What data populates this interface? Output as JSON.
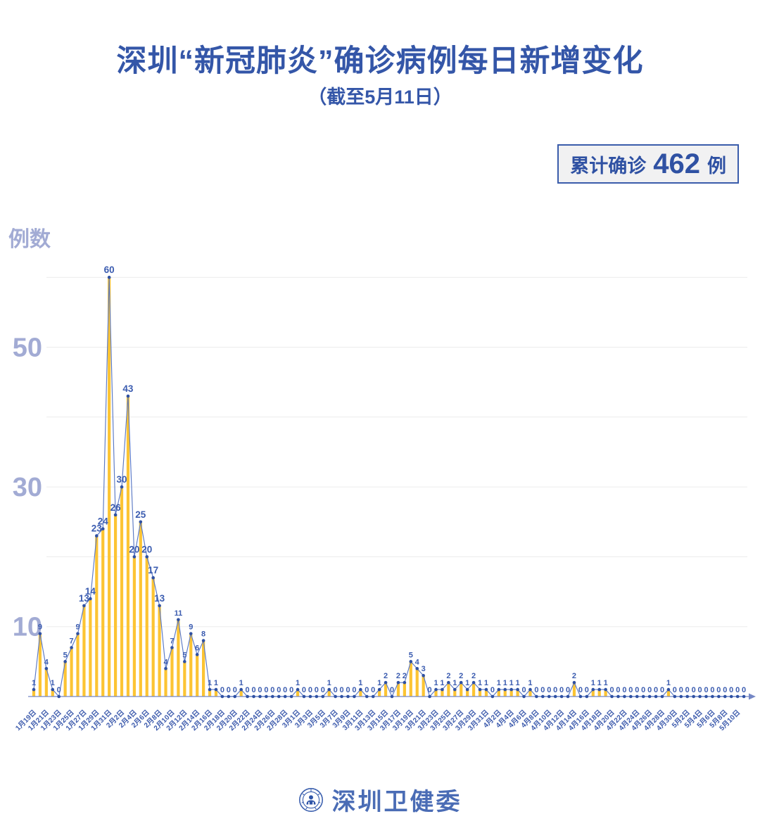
{
  "title": "深圳“新冠肺炎”确诊病例每日新增变化",
  "subtitle": "（截至5月11日）",
  "summary_badge": {
    "prefix": "累计确诊",
    "value": "462",
    "unit": "例"
  },
  "y_axis_title": "例数",
  "footer": {
    "logo": "shenzhen-health-commission-emblem",
    "name": "深圳卫健委"
  },
  "colors": {
    "title_blue": "#3456a8",
    "bar_yellow": "#fcc433",
    "line_blue": "#5b79c4",
    "dot_blue": "#2f51a3",
    "value_label_blue": "#3b5cb0",
    "date_label_blue": "#3e5cad",
    "axis_blue": "#7487c5",
    "ytick_lavender": "#a2abd4",
    "gridline_gray": "#ececec",
    "badge_border": "#3a5cab",
    "badge_bg": "#f1f1f2"
  },
  "chart_data": {
    "type": "bar",
    "overlay": "line",
    "title": "深圳“新冠肺炎”确诊病例每日新增变化",
    "subtitle": "（截至5月11日）",
    "xlabel": "",
    "ylabel": "例数",
    "ylim": [
      0,
      62
    ],
    "y_ticks": [
      10,
      30,
      50
    ],
    "gridlines": [
      10,
      20,
      30,
      40,
      50,
      60
    ],
    "grid": "horizontal",
    "legend_position": "none",
    "x_label_interval": 2,
    "total": 462,
    "x": [
      "1月19日",
      "1月20日",
      "1月21日",
      "1月22日",
      "1月23日",
      "1月24日",
      "1月25日",
      "1月26日",
      "1月27日",
      "1月28日",
      "1月29日",
      "1月30日",
      "1月31日",
      "2月1日",
      "2月2日",
      "2月3日",
      "2月4日",
      "2月5日",
      "2月6日",
      "2月7日",
      "2月8日",
      "2月9日",
      "2月10日",
      "2月11日",
      "2月12日",
      "2月13日",
      "2月14日",
      "2月15日",
      "2月16日",
      "2月17日",
      "2月18日",
      "2月19日",
      "2月20日",
      "2月21日",
      "2月22日",
      "2月23日",
      "2月24日",
      "2月25日",
      "2月26日",
      "2月27日",
      "2月28日",
      "2月29日",
      "3月1日",
      "3月2日",
      "3月3日",
      "3月4日",
      "3月5日",
      "3月6日",
      "3月7日",
      "3月8日",
      "3月9日",
      "3月10日",
      "3月11日",
      "3月12日",
      "3月13日",
      "3月14日",
      "3月15日",
      "3月16日",
      "3月17日",
      "3月18日",
      "3月19日",
      "3月20日",
      "3月21日",
      "3月22日",
      "3月23日",
      "3月24日",
      "3月25日",
      "3月26日",
      "3月27日",
      "3月28日",
      "3月29日",
      "3月30日",
      "3月31日",
      "4月1日",
      "4月2日",
      "4月3日",
      "4月4日",
      "4月5日",
      "4月6日",
      "4月7日",
      "4月8日",
      "4月9日",
      "4月10日",
      "4月11日",
      "4月12日",
      "4月13日",
      "4月14日",
      "4月15日",
      "4月16日",
      "4月17日",
      "4月18日",
      "4月19日",
      "4月20日",
      "4月21日",
      "4月22日",
      "4月23日",
      "4月24日",
      "4月25日",
      "4月26日",
      "4月27日",
      "4月28日",
      "4月29日",
      "4月30日",
      "5月1日",
      "5月2日",
      "5月3日",
      "5月4日",
      "5月5日",
      "5月6日",
      "5月7日",
      "5月8日",
      "5月9日",
      "5月10日",
      "5月11日"
    ],
    "values": [
      1,
      9,
      4,
      1,
      0,
      5,
      7,
      9,
      13,
      14,
      23,
      24,
      60,
      26,
      30,
      43,
      20,
      25,
      20,
      17,
      13,
      4,
      7,
      11,
      5,
      9,
      6,
      8,
      1,
      1,
      0,
      0,
      0,
      1,
      0,
      0,
      0,
      0,
      0,
      0,
      0,
      0,
      1,
      0,
      0,
      0,
      0,
      1,
      0,
      0,
      0,
      0,
      1,
      0,
      0,
      1,
      2,
      0,
      2,
      2,
      5,
      4,
      3,
      0,
      1,
      1,
      2,
      1,
      2,
      1,
      2,
      1,
      1,
      0,
      1,
      1,
      1,
      1,
      0,
      1,
      0,
      0,
      0,
      0,
      0,
      0,
      2,
      0,
      0,
      1,
      1,
      1,
      0,
      0,
      0,
      0,
      0,
      0,
      0,
      0,
      0,
      1,
      0,
      0,
      0,
      0,
      0,
      0,
      0,
      0,
      0,
      0,
      0,
      0
    ]
  }
}
